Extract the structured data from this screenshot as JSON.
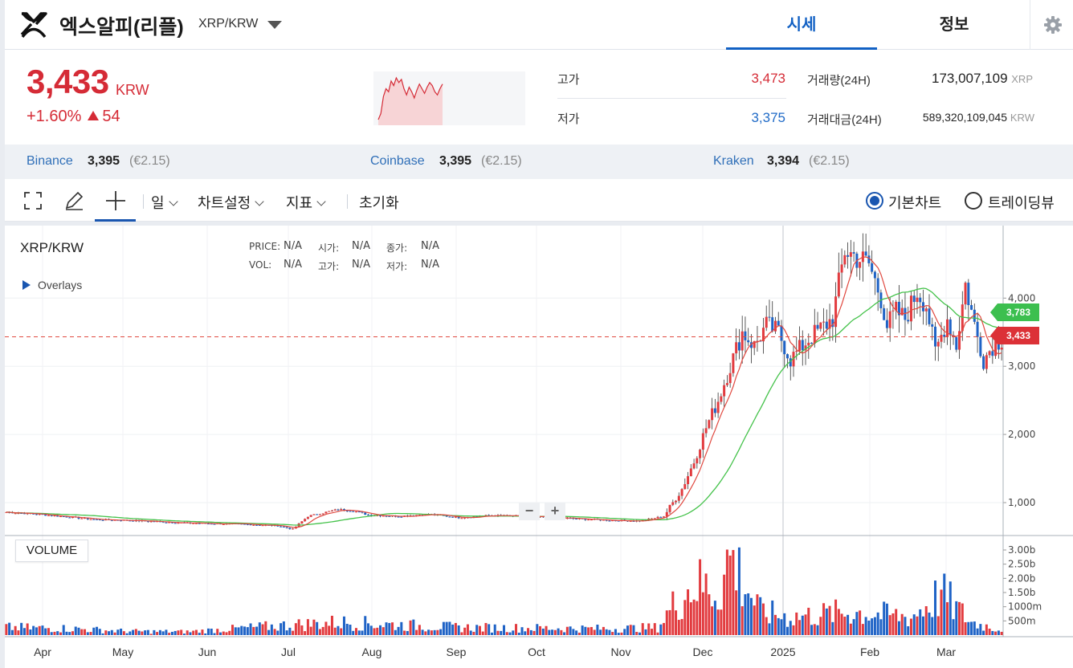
{
  "header": {
    "coin_name": "엑스알피(리플)",
    "pair": "XRP/KRW",
    "tabs": [
      {
        "label": "시세",
        "active": true
      },
      {
        "label": "정보",
        "active": false
      }
    ]
  },
  "price": {
    "current": "3,433",
    "unit": "KRW",
    "change_pct": "+1.60%",
    "change_abs": "54",
    "spark": [
      3.2,
      3.24,
      3.35,
      3.4,
      3.38,
      3.45,
      3.42,
      3.47,
      3.44,
      3.46,
      3.4,
      3.36,
      3.41,
      3.38,
      3.34,
      3.39,
      3.43,
      3.4,
      3.37,
      3.41,
      3.44,
      3.42,
      3.38,
      3.36,
      3.4,
      3.43
    ]
  },
  "stats": {
    "high_label": "고가",
    "high": "3,473",
    "low_label": "저가",
    "low": "3,375",
    "vol_label": "거래량(24H)",
    "vol": "173,007,109",
    "vol_unit": "XRP",
    "amt_label": "거래대금(24H)",
    "amt": "589,320,109,045",
    "amt_unit": "KRW"
  },
  "exchanges": [
    {
      "name": "Binance",
      "price": "3,395",
      "eur": "(€2.15)"
    },
    {
      "name": "Coinbase",
      "price": "3,395",
      "eur": "(€2.15)"
    },
    {
      "name": "Kraken",
      "price": "3,394",
      "eur": "(€2.15)"
    }
  ],
  "toolbar": {
    "period": "일",
    "chart_settings": "차트설정",
    "indicators": "지표",
    "reset": "초기화",
    "basic_chart": "기본차트",
    "tradingview": "트레이딩뷰"
  },
  "chart_data": {
    "type": "candlestick",
    "title": "XRP/KRW",
    "legend": {
      "price_label": "PRICE:",
      "price": "N/A",
      "vol_label": "VOL:",
      "vol": "N/A",
      "open_label": "시가:",
      "open": "N/A",
      "high_label": "고가:",
      "high": "N/A",
      "close_label": "종가:",
      "close": "N/A",
      "low_label": "저가:",
      "low": "N/A"
    },
    "overlays_label": "Overlays",
    "volume_label": "VOLUME",
    "x_ticks": [
      "Apr",
      "May",
      "Jun",
      "Jul",
      "Aug",
      "Sep",
      "Oct",
      "Nov",
      "Dec",
      "2025",
      "Feb",
      "Mar"
    ],
    "y_ticks": [
      "4,000",
      "3,000",
      "2,000",
      "1,000"
    ],
    "y_ticks_values": [
      4000,
      3000,
      2000,
      1000
    ],
    "vol_ticks": [
      "3.00b",
      "2.50b",
      "2.00b",
      "1.50b",
      "1000m",
      "500m"
    ],
    "vol_ticks_values": [
      3000,
      2500,
      2000,
      1500,
      1000,
      500
    ],
    "ma_long_last": "3,783",
    "ma_long_last_value": 3783,
    "current_price_label": "3,433",
    "current_price_value": 3433,
    "close_anchors": [
      [
        0,
        860
      ],
      [
        10,
        830
      ],
      [
        20,
        790
      ],
      [
        30,
        750
      ],
      [
        40,
        740
      ],
      [
        50,
        720
      ],
      [
        60,
        700
      ],
      [
        70,
        690
      ],
      [
        80,
        680
      ],
      [
        90,
        660
      ],
      [
        95,
        610
      ],
      [
        100,
        800
      ],
      [
        110,
        900
      ],
      [
        115,
        880
      ],
      [
        120,
        820
      ],
      [
        130,
        800
      ],
      [
        140,
        830
      ],
      [
        150,
        780
      ],
      [
        160,
        810
      ],
      [
        170,
        800
      ],
      [
        180,
        780
      ],
      [
        190,
        760
      ],
      [
        200,
        740
      ],
      [
        210,
        730
      ],
      [
        218,
        800
      ],
      [
        224,
        1200
      ],
      [
        228,
        1600
      ],
      [
        232,
        2100
      ],
      [
        236,
        2500
      ],
      [
        240,
        3000
      ],
      [
        244,
        3500
      ],
      [
        248,
        3300
      ],
      [
        252,
        3600
      ],
      [
        256,
        3500
      ],
      [
        260,
        3100
      ],
      [
        266,
        3400
      ],
      [
        270,
        3550
      ],
      [
        274,
        3700
      ],
      [
        278,
        4700
      ],
      [
        282,
        4600
      ],
      [
        286,
        4500
      ],
      [
        290,
        4000
      ],
      [
        292,
        3600
      ],
      [
        295,
        3800
      ],
      [
        298,
        3700
      ],
      [
        302,
        4100
      ],
      [
        305,
        3900
      ],
      [
        308,
        3200
      ],
      [
        312,
        3700
      ],
      [
        315,
        3300
      ],
      [
        318,
        4200
      ],
      [
        321,
        3600
      ],
      [
        324,
        3100
      ],
      [
        327,
        3300
      ],
      [
        330,
        3400
      ]
    ],
    "volume_anchors": [
      [
        0,
        300
      ],
      [
        20,
        260
      ],
      [
        40,
        150
      ],
      [
        60,
        130
      ],
      [
        95,
        400
      ],
      [
        110,
        500
      ],
      [
        150,
        300
      ],
      [
        200,
        250
      ],
      [
        216,
        300
      ],
      [
        222,
        1300
      ],
      [
        228,
        2000
      ],
      [
        236,
        1700
      ],
      [
        240,
        3100
      ],
      [
        250,
        900
      ],
      [
        260,
        700
      ],
      [
        280,
        900
      ],
      [
        300,
        700
      ],
      [
        310,
        1600
      ],
      [
        320,
        500
      ],
      [
        330,
        200
      ]
    ]
  }
}
